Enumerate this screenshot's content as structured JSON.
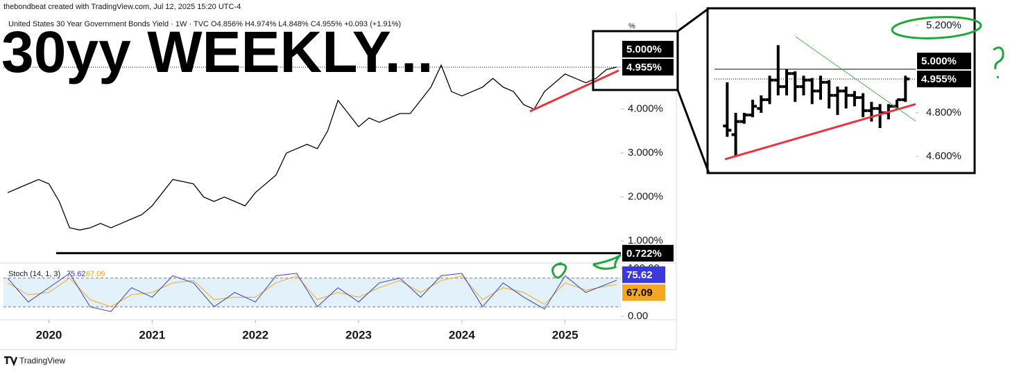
{
  "credit": "thebondbeat created with TradingView.com, Jul 12, 2025 15:20 UTC-4",
  "footer": "TradingView",
  "chart_data": [
    {
      "type": "line",
      "title": "30yy WEEKLY...",
      "subtitle": "United States 30 Year Government Bonds Yield · 1W · TVC O4.856% H4.974% L4.848% C4.955% +0.093 (+1.91%)",
      "unit": "%",
      "x": [
        2019.6,
        2019.7,
        2019.8,
        2019.9,
        2020.0,
        2020.1,
        2020.2,
        2020.3,
        2020.4,
        2020.5,
        2020.6,
        2020.7,
        2020.8,
        2020.9,
        2021.0,
        2021.1,
        2021.2,
        2021.3,
        2021.4,
        2021.5,
        2021.6,
        2021.7,
        2021.8,
        2021.9,
        2022.0,
        2022.1,
        2022.2,
        2022.3,
        2022.4,
        2022.5,
        2022.6,
        2022.7,
        2022.8,
        2022.9,
        2023.0,
        2023.1,
        2023.2,
        2023.3,
        2023.4,
        2023.5,
        2023.6,
        2023.7,
        2023.8,
        2023.9,
        2024.0,
        2024.1,
        2024.2,
        2024.3,
        2024.4,
        2024.5,
        2024.6,
        2024.7,
        2024.8,
        2024.9,
        2025.0,
        2025.1,
        2025.2,
        2025.3,
        2025.4,
        2025.5
      ],
      "values": [
        2.1,
        2.2,
        2.3,
        2.4,
        2.3,
        1.9,
        1.3,
        1.25,
        1.3,
        1.4,
        1.3,
        1.4,
        1.5,
        1.6,
        1.8,
        2.1,
        2.4,
        2.35,
        2.3,
        2.0,
        1.9,
        2.0,
        1.9,
        1.8,
        2.1,
        2.3,
        2.5,
        3.0,
        3.1,
        3.2,
        3.1,
        3.5,
        4.2,
        3.9,
        3.6,
        3.8,
        3.7,
        3.8,
        3.9,
        3.9,
        4.2,
        4.5,
        5.0,
        4.4,
        4.3,
        4.4,
        4.5,
        4.7,
        4.5,
        4.4,
        4.1,
        4.0,
        4.4,
        4.6,
        4.8,
        4.7,
        4.6,
        4.7,
        4.9,
        4.955
      ],
      "color": "#000000",
      "xlim": [
        2019.56,
        2025.54
      ],
      "xticks": [
        2020,
        2021,
        2022,
        2023,
        2024,
        2025
      ],
      "ylim": [
        0.53,
        6.2
      ],
      "yticks": [
        {
          "value": 1,
          "label": "1.000%"
        },
        {
          "value": 2,
          "label": "2.000%"
        },
        {
          "value": 3,
          "label": "3.000%"
        },
        {
          "value": 4,
          "label": "4.000%"
        }
      ],
      "markers": [
        {
          "value": 5,
          "label": "5.000%"
        },
        {
          "value": 4.955,
          "label": "4.955%",
          "line": "dotted"
        },
        {
          "value": 0.722,
          "label": "0.722%"
        }
      ],
      "lines": [
        {
          "color": "#000000",
          "x": [
            2020.07,
            2025.54
          ],
          "values": [
            0.722,
            0.722
          ]
        },
        {
          "color": "#e8343f",
          "x": [
            2024.66,
            2025.52
          ],
          "values": [
            3.95,
            4.88
          ]
        }
      ]
    },
    {
      "type": "stochastic",
      "title": "Stoch (14, 1, 3)",
      "x": [
        2019.6,
        2019.8,
        2020.0,
        2020.2,
        2020.4,
        2020.6,
        2020.8,
        2021.0,
        2021.2,
        2021.4,
        2021.6,
        2021.8,
        2022.0,
        2022.2,
        2022.4,
        2022.6,
        2022.8,
        2023.0,
        2023.2,
        2023.4,
        2023.6,
        2023.8,
        2024.0,
        2024.2,
        2024.4,
        2024.6,
        2024.8,
        2025.0,
        2025.2,
        2025.5
      ],
      "series": [
        {
          "color": "#3a3ad8",
          "values": [
            80,
            30,
            60,
            90,
            20,
            10,
            60,
            40,
            85,
            70,
            20,
            50,
            30,
            85,
            90,
            20,
            60,
            30,
            70,
            80,
            40,
            85,
            90,
            20,
            70,
            40,
            15,
            85,
            50,
            75.62
          ]
        },
        {
          "color": "#f5a623",
          "values": [
            70,
            45,
            50,
            80,
            35,
            20,
            45,
            50,
            70,
            75,
            35,
            40,
            40,
            70,
            85,
            35,
            50,
            40,
            60,
            75,
            50,
            75,
            85,
            35,
            60,
            50,
            25,
            70,
            55,
            67.09
          ]
        }
      ],
      "ylim": [
        0,
        100
      ],
      "yticks": [
        {
          "value": 0,
          "label": "0.00"
        },
        {
          "value": 100,
          "label": "100.00"
        }
      ],
      "bands": [
        20,
        80
      ],
      "xlim": [
        2019.56,
        2025.54
      ]
    },
    {
      "type": "ohlc",
      "open": [
        4.74,
        4.7,
        4.76,
        4.79,
        4.82,
        4.86,
        4.95,
        4.92,
        4.98,
        4.92,
        4.95,
        4.9,
        4.94,
        4.88,
        4.9,
        4.88,
        4.87,
        4.81,
        4.82,
        4.8,
        4.83,
        4.86
      ],
      "high": [
        4.94,
        4.8,
        4.8,
        4.86,
        4.88,
        4.97,
        5.11,
        5.0,
        4.99,
        4.97,
        4.96,
        4.97,
        4.95,
        4.92,
        4.92,
        4.9,
        4.89,
        4.85,
        4.84,
        4.84,
        4.86,
        4.97
      ],
      "low": [
        4.69,
        4.6,
        4.75,
        4.78,
        4.8,
        4.84,
        4.88,
        4.88,
        4.85,
        4.88,
        4.84,
        4.86,
        4.82,
        4.79,
        4.82,
        4.83,
        4.78,
        4.76,
        4.73,
        4.77,
        4.82,
        4.85
      ],
      "close": [
        4.72,
        4.76,
        4.79,
        4.83,
        4.86,
        4.95,
        4.92,
        4.98,
        4.92,
        4.95,
        4.9,
        4.94,
        4.88,
        4.9,
        4.88,
        4.87,
        4.81,
        4.82,
        4.8,
        4.83,
        4.86,
        4.955
      ],
      "color": "#000000",
      "xlim": [
        -1.5,
        22.2
      ],
      "ylim": [
        4.524,
        5.279
      ],
      "yticks": [
        {
          "value": 5.2,
          "label": "5.200%"
        },
        {
          "value": 4.8,
          "label": "4.800%"
        },
        {
          "value": 4.6,
          "label": "4.600%"
        }
      ],
      "markers": [
        {
          "value": 5,
          "label": "5.000%",
          "line": "solid"
        },
        {
          "value": 4.955,
          "label": "4.955%",
          "line": "dotted"
        }
      ],
      "lines": [
        {
          "color": "#e8343f",
          "x": [
            -0.27,
            22.2
          ],
          "values": [
            4.587,
            4.84
          ]
        },
        {
          "color": "#4caf50",
          "x": [
            8.06,
            22.2
          ],
          "values": [
            5.149,
            4.762
          ]
        }
      ]
    }
  ]
}
